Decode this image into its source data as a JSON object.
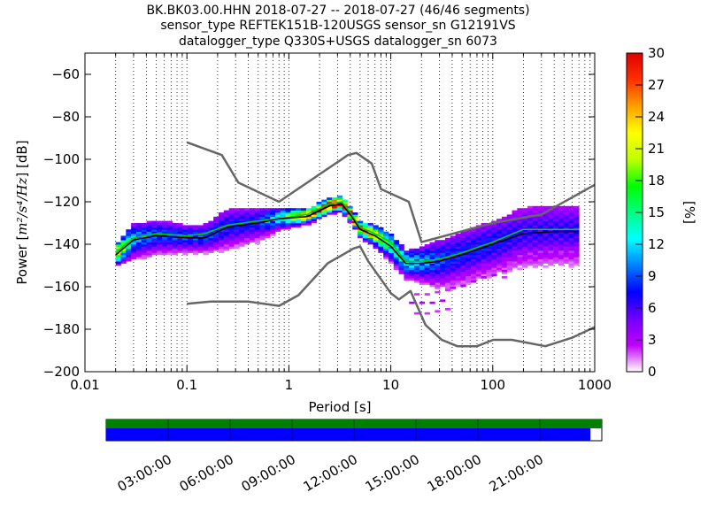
{
  "title_lines": [
    "BK.BK03.00.HHN   2018-07-27 -- 2018-07-27  (46/46 segments)",
    "sensor_type REFTEK151B-120USGS sensor_sn G12191VS",
    "datalogger_type Q330S+USGS datalogger_sn 6073"
  ],
  "chart_data": {
    "type": "heatmap",
    "title": "BK.BK03.00.HHN   2018-07-27 -- 2018-07-27  (46/46 segments)",
    "subtitle": "sensor_type REFTEK151B-120USGS sensor_sn G12191VS / datalogger_type Q330S+USGS datalogger_sn 6073",
    "xlabel": "Period [s]",
    "ylabel_prefix": "Power [",
    "ylabel_units": "m²/s⁴/Hz",
    "ylabel_suffix": "] [dB]",
    "x_scale": "log",
    "xlim": [
      0.01,
      1000
    ],
    "ylim": [
      -200,
      -50
    ],
    "x_ticks": [
      {
        "value": 0.01,
        "label": "0.01"
      },
      {
        "value": 0.1,
        "label": "0.1"
      },
      {
        "value": 1,
        "label": "1"
      },
      {
        "value": 10,
        "label": "10"
      },
      {
        "value": 100,
        "label": "100"
      },
      {
        "value": 1000,
        "label": "1000"
      }
    ],
    "y_ticks": [
      {
        "value": -60,
        "label": "−60"
      },
      {
        "value": -80,
        "label": "−80"
      },
      {
        "value": -100,
        "label": "−100"
      },
      {
        "value": -120,
        "label": "−120"
      },
      {
        "value": -140,
        "label": "−140"
      },
      {
        "value": -160,
        "label": "−160"
      },
      {
        "value": -180,
        "label": "−180"
      },
      {
        "value": -200,
        "label": "−200"
      }
    ],
    "grid": "dotted vertical lines",
    "colorbar": {
      "label": "[%]",
      "range": [
        0,
        30
      ],
      "ticks": [
        "0",
        "3",
        "6",
        "9",
        "12",
        "15",
        "18",
        "21",
        "24",
        "27",
        "30"
      ],
      "colormap": [
        "#ffffff",
        "#c000ff",
        "#7000ff",
        "#0000ff",
        "#0080ff",
        "#00ffff",
        "#00ff80",
        "#00ff00",
        "#c0ff00",
        "#ffff00",
        "#ffa000",
        "#ff3000",
        "#e00000"
      ]
    },
    "model_lines": [
      {
        "name": "high_noise_model",
        "color": "#666666",
        "points": [
          [
            0.1,
            -92
          ],
          [
            0.22,
            -98
          ],
          [
            0.32,
            -111
          ],
          [
            0.8,
            -120
          ],
          [
            3.8,
            -98
          ],
          [
            4.6,
            -97
          ],
          [
            6.5,
            -102
          ],
          [
            8.0,
            -114
          ],
          [
            15,
            -120
          ],
          [
            20,
            -139
          ],
          [
            100,
            -130
          ],
          [
            300,
            -126
          ],
          [
            1000,
            -112
          ]
        ]
      },
      {
        "name": "low_noise_model",
        "color": "#666666",
        "points": [
          [
            0.1,
            -168
          ],
          [
            0.17,
            -167
          ],
          [
            0.4,
            -167
          ],
          [
            0.8,
            -169
          ],
          [
            1.24,
            -164
          ],
          [
            2.4,
            -149
          ],
          [
            4.3,
            -142
          ],
          [
            5.0,
            -141
          ],
          [
            6.0,
            -148
          ],
          [
            10,
            -163
          ],
          [
            12,
            -166
          ],
          [
            15.6,
            -162
          ],
          [
            21.9,
            -178
          ],
          [
            31.6,
            -185
          ],
          [
            45,
            -188
          ],
          [
            70,
            -188
          ],
          [
            101,
            -185
          ],
          [
            154,
            -185
          ],
          [
            328,
            -188
          ],
          [
            600,
            -184
          ],
          [
            1000,
            -179
          ]
        ]
      }
    ],
    "mean_line": {
      "color": "#000000",
      "points": [
        [
          0.02,
          -145
        ],
        [
          0.03,
          -138
        ],
        [
          0.05,
          -136
        ],
        [
          0.1,
          -137
        ],
        [
          0.15,
          -137
        ],
        [
          0.25,
          -132
        ],
        [
          0.5,
          -130
        ],
        [
          0.8,
          -128
        ],
        [
          1.5,
          -127
        ],
        [
          2.5,
          -122
        ],
        [
          3.3,
          -121
        ],
        [
          4,
          -126
        ],
        [
          5,
          -133
        ],
        [
          7,
          -136
        ],
        [
          10,
          -141
        ],
        [
          14,
          -149
        ],
        [
          20,
          -149
        ],
        [
          30,
          -148
        ],
        [
          50,
          -145
        ],
        [
          100,
          -140
        ],
        [
          200,
          -135
        ],
        [
          400,
          -134
        ],
        [
          700,
          -134
        ]
      ]
    },
    "mode_line": {
      "color": "#00d000",
      "points": [
        [
          0.02,
          -144
        ],
        [
          0.03,
          -137
        ],
        [
          0.05,
          -135
        ],
        [
          0.1,
          -136
        ],
        [
          0.15,
          -135
        ],
        [
          0.25,
          -131
        ],
        [
          0.5,
          -129
        ],
        [
          0.8,
          -128
        ],
        [
          1.5,
          -126
        ],
        [
          2.5,
          -121
        ],
        [
          3.3,
          -120
        ],
        [
          4,
          -125
        ],
        [
          5,
          -132
        ],
        [
          7,
          -135
        ],
        [
          10,
          -139
        ],
        [
          14,
          -148
        ],
        [
          20,
          -148
        ],
        [
          30,
          -147
        ],
        [
          50,
          -144
        ],
        [
          100,
          -139
        ],
        [
          200,
          -133
        ],
        [
          400,
          -133
        ],
        [
          700,
          -133
        ]
      ]
    },
    "density_ridge": {
      "periods": [
        0.02,
        0.03,
        0.05,
        0.1,
        0.15,
        0.25,
        0.5,
        0.8,
        1.5,
        2.5,
        3.3,
        4,
        5,
        7,
        10,
        14,
        20,
        30,
        50,
        100,
        200,
        400,
        700
      ],
      "spread_db": [
        3,
        5,
        5,
        4,
        4,
        6,
        5,
        3,
        2,
        2,
        2,
        2,
        2,
        3,
        4,
        4,
        5,
        7,
        8,
        8,
        9,
        9,
        9
      ],
      "peak_percent": [
        22,
        10,
        8,
        8,
        8,
        7,
        7,
        12,
        25,
        30,
        30,
        28,
        26,
        20,
        14,
        12,
        10,
        8,
        7,
        7,
        6,
        6,
        6
      ]
    }
  },
  "timeline": {
    "tick_labels": [
      "03:00:00",
      "06:00:00",
      "09:00:00",
      "12:00:00",
      "15:00:00",
      "18:00:00",
      "21:00:00"
    ],
    "tick_hours": [
      3,
      6,
      9,
      12,
      15,
      18,
      21
    ],
    "data_coverage_color": "#008000",
    "psd_coverage_color": "#0000ff",
    "data_coverage_fraction": 1.0,
    "psd_coverage_fraction": 0.977
  }
}
